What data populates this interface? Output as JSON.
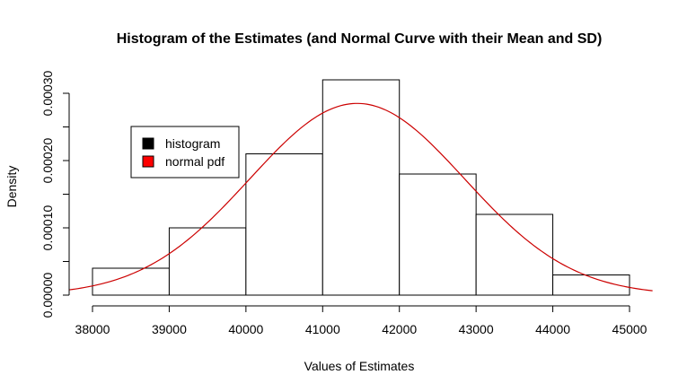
{
  "chart_data": {
    "type": "bar",
    "title": "Histogram of the Estimates (and Normal Curve with their Mean and SD)",
    "xlabel": "Values of Estimates",
    "ylabel": "Density",
    "xlim": [
      37700,
      45300
    ],
    "ylim": [
      0,
      0.00032
    ],
    "x_ticks": [
      38000,
      39000,
      40000,
      41000,
      42000,
      43000,
      44000,
      45000
    ],
    "x_tick_labels": [
      "38000",
      "39000",
      "40000",
      "41000",
      "42000",
      "43000",
      "44000",
      "45000"
    ],
    "y_ticks": [
      0,
      5e-05,
      0.0001,
      0.00015,
      0.0002,
      0.00025,
      0.0003
    ],
    "y_tick_labels": [
      "0.00000",
      "",
      "0.00010",
      "",
      "0.00020",
      "",
      "0.00030"
    ],
    "bins": [
      {
        "start": 38000,
        "end": 39000,
        "density": 4e-05
      },
      {
        "start": 39000,
        "end": 40000,
        "density": 0.0001
      },
      {
        "start": 40000,
        "end": 41000,
        "density": 0.00021
      },
      {
        "start": 41000,
        "end": 42000,
        "density": 0.00032
      },
      {
        "start": 42000,
        "end": 43000,
        "density": 0.00018
      },
      {
        "start": 43000,
        "end": 44000,
        "density": 0.00012
      },
      {
        "start": 44000,
        "end": 45000,
        "density": 3e-05
      }
    ],
    "normal_curve": {
      "mean": 41450,
      "sd": 1400,
      "color": "#cc0000"
    },
    "legend": {
      "placement": "top-left",
      "entries": [
        {
          "label": "histogram",
          "color": "#000000"
        },
        {
          "label": "normal pdf",
          "color": "#ff0000"
        }
      ]
    }
  }
}
